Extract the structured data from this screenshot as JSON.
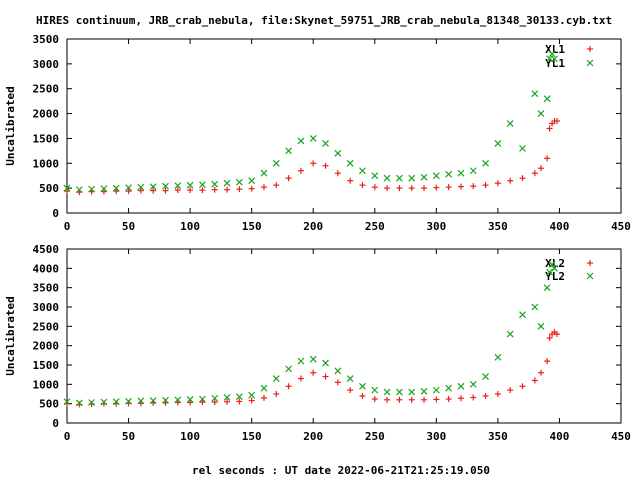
{
  "page_title": "HIRES continuum, JRB_crab_nebula, file:Skynet_59751_JRB_crab_nebula_81348_30133.cyb.txt",
  "x_axis_label": "rel seconds : UT date 2022-06-21T21:25:19.050",
  "chart_data": [
    {
      "type": "scatter",
      "ylabel": "Uncalibrated",
      "xlim": [
        0,
        450
      ],
      "ylim": [
        0,
        3500
      ],
      "xticks": [
        "0",
        "50",
        "100",
        "150",
        "200",
        "250",
        "300",
        "350",
        "400",
        "450"
      ],
      "yticks": [
        "0",
        "500",
        "1000",
        "1500",
        "2000",
        "2500",
        "3000",
        "3500"
      ],
      "legend_position": "top-right",
      "series": [
        {
          "name": "XL1",
          "marker": "+",
          "color": "#e8211c",
          "x": [
            0,
            10,
            20,
            30,
            40,
            50,
            60,
            70,
            80,
            90,
            100,
            110,
            120,
            130,
            140,
            150,
            160,
            170,
            180,
            190,
            200,
            210,
            220,
            230,
            240,
            250,
            260,
            270,
            280,
            290,
            300,
            310,
            320,
            330,
            340,
            350,
            360,
            370,
            380,
            385,
            390,
            392,
            394,
            396,
            398
          ],
          "y": [
            440,
            420,
            430,
            430,
            440,
            440,
            450,
            450,
            450,
            460,
            460,
            460,
            470,
            470,
            480,
            490,
            520,
            560,
            700,
            850,
            1000,
            950,
            800,
            650,
            560,
            520,
            500,
            500,
            500,
            500,
            510,
            520,
            530,
            540,
            560,
            600,
            650,
            700,
            800,
            900,
            1100,
            1700,
            1800,
            1850,
            1850
          ]
        },
        {
          "name": "YL1",
          "marker": "x",
          "color": "#1aa31a",
          "x": [
            0,
            10,
            20,
            30,
            40,
            50,
            60,
            70,
            80,
            90,
            100,
            110,
            120,
            130,
            140,
            150,
            160,
            170,
            180,
            190,
            200,
            210,
            220,
            230,
            240,
            250,
            260,
            270,
            280,
            290,
            300,
            310,
            320,
            330,
            340,
            350,
            360,
            370,
            380,
            385,
            390,
            392,
            394,
            396
          ],
          "y": [
            500,
            470,
            480,
            490,
            500,
            510,
            520,
            530,
            540,
            550,
            560,
            570,
            580,
            600,
            620,
            650,
            800,
            1000,
            1250,
            1450,
            1500,
            1400,
            1200,
            1000,
            850,
            750,
            700,
            700,
            700,
            720,
            750,
            780,
            800,
            850,
            1000,
            1400,
            1800,
            1300,
            2400,
            2000,
            2300,
            3100,
            3200,
            3100
          ]
        }
      ]
    },
    {
      "type": "scatter",
      "ylabel": "Uncalibrated",
      "xlim": [
        0,
        450
      ],
      "ylim": [
        0,
        4500
      ],
      "xticks": [
        "0",
        "50",
        "100",
        "150",
        "200",
        "250",
        "300",
        "350",
        "400",
        "450"
      ],
      "yticks": [
        "0",
        "500",
        "1000",
        "1500",
        "2000",
        "2500",
        "3000",
        "3500",
        "4000",
        "4500"
      ],
      "legend_position": "top-right",
      "series": [
        {
          "name": "XL2",
          "marker": "+",
          "color": "#e8211c",
          "x": [
            0,
            10,
            20,
            30,
            40,
            50,
            60,
            70,
            80,
            90,
            100,
            110,
            120,
            130,
            140,
            150,
            160,
            170,
            180,
            190,
            200,
            210,
            220,
            230,
            240,
            250,
            260,
            270,
            280,
            290,
            300,
            310,
            320,
            330,
            340,
            350,
            360,
            370,
            380,
            385,
            390,
            392,
            394,
            396,
            398
          ],
          "y": [
            500,
            480,
            490,
            500,
            500,
            510,
            510,
            520,
            520,
            530,
            530,
            540,
            540,
            550,
            560,
            580,
            650,
            750,
            950,
            1150,
            1300,
            1200,
            1050,
            850,
            700,
            620,
            600,
            600,
            600,
            600,
            610,
            620,
            640,
            660,
            700,
            750,
            850,
            950,
            1100,
            1300,
            1600,
            2200,
            2300,
            2350,
            2300
          ]
        },
        {
          "name": "YL2",
          "marker": "x",
          "color": "#1aa31a",
          "x": [
            0,
            10,
            20,
            30,
            40,
            50,
            60,
            70,
            80,
            90,
            100,
            110,
            120,
            130,
            140,
            150,
            160,
            170,
            180,
            190,
            200,
            210,
            220,
            230,
            240,
            250,
            260,
            270,
            280,
            290,
            300,
            310,
            320,
            330,
            340,
            350,
            360,
            370,
            380,
            385,
            390,
            392,
            394,
            396
          ],
          "y": [
            550,
            520,
            530,
            540,
            550,
            560,
            570,
            580,
            590,
            600,
            610,
            620,
            640,
            660,
            680,
            720,
            900,
            1150,
            1400,
            1600,
            1650,
            1550,
            1350,
            1150,
            950,
            850,
            800,
            800,
            800,
            820,
            850,
            900,
            950,
            1000,
            1200,
            1700,
            2300,
            2800,
            3000,
            2500,
            3500,
            3900,
            4100,
            4000
          ]
        }
      ]
    }
  ]
}
